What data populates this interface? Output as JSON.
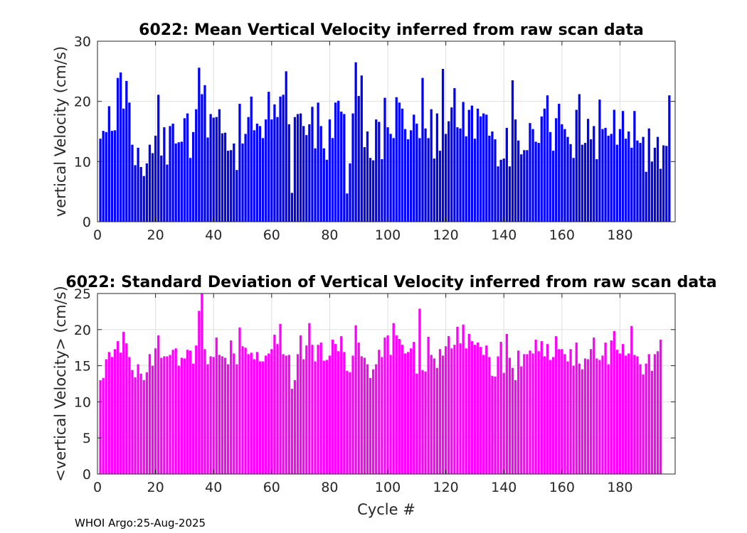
{
  "footer": "WHOI Argo:25-Aug-2025",
  "colors": {
    "mean_bar": "#0000ff",
    "std_bar": "#ff00ff",
    "axes": "#262626",
    "grid": "#dfdfdf"
  },
  "chart_data": [
    {
      "type": "bar",
      "title": "6022: Mean Vertical Velocity inferred from raw scan data",
      "xlabel": "",
      "ylabel": "vertical Velocity (cm/s)",
      "xlim": [
        0,
        199
      ],
      "ylim": [
        0,
        30
      ],
      "xticks": [
        0,
        20,
        40,
        60,
        80,
        100,
        120,
        140,
        160,
        180
      ],
      "yticks": [
        0,
        10,
        20,
        30
      ],
      "grid": true,
      "x_start": 1,
      "values": [
        13.8,
        15.1,
        14.9,
        19.2,
        15.1,
        15.2,
        23.9,
        24.8,
        18.8,
        23.4,
        19.8,
        12.8,
        9.4,
        12.3,
        9.1,
        7.6,
        9.7,
        12.8,
        11.4,
        14.3,
        21.1,
        11.0,
        15.7,
        9.5,
        15.9,
        16.3,
        13.0,
        13.2,
        13.3,
        17.2,
        18.0,
        10.6,
        14.9,
        18.7,
        25.6,
        21.2,
        22.7,
        14.0,
        17.9,
        17.3,
        17.4,
        18.7,
        14.7,
        14.8,
        11.8,
        11.9,
        13.0,
        8.6,
        19.6,
        13.0,
        14.6,
        17.4,
        20.8,
        15.2,
        16.3,
        15.9,
        13.9,
        17.0,
        21.6,
        17.0,
        19.5,
        17.4,
        20.8,
        21.1,
        25.0,
        16.2,
        4.8,
        17.4,
        17.9,
        18.0,
        15.9,
        14.4,
        16.2,
        19.1,
        12.2,
        19.8,
        15.9,
        12.2,
        10.3,
        17.0,
        13.9,
        19.8,
        20.1,
        18.3,
        17.9,
        4.7,
        9.7,
        18.0,
        26.5,
        20.9,
        24.3,
        12.4,
        15.0,
        10.6,
        10.2,
        17.0,
        16.6,
        10.4,
        20.6,
        15.7,
        14.6,
        13.9,
        20.7,
        19.8,
        18.8,
        15.4,
        13.7,
        15.2,
        17.8,
        16.3,
        13.9,
        23.9,
        15.5,
        13.9,
        18.7,
        10.5,
        18.0,
        11.8,
        25.4,
        14.6,
        16.7,
        19.0,
        22.2,
        15.7,
        15.5,
        19.9,
        14.2,
        18.6,
        19.3,
        13.8,
        18.8,
        17.5,
        18.0,
        17.8,
        14.3,
        15.0,
        13.7,
        9.2,
        10.3,
        10.5,
        15.6,
        9.2,
        23.5,
        17.0,
        13.5,
        11.2,
        11.9,
        11.9,
        16.4,
        15.4,
        13.3,
        13.1,
        17.5,
        18.8,
        21.0,
        14.9,
        11.8,
        17.2,
        19.6,
        16.2,
        15.4,
        14.1,
        12.9,
        10.6,
        18.6,
        21.2,
        12.8,
        13.1,
        17.1,
        13.7,
        15.9,
        10.4,
        20.3,
        15.4,
        15.6,
        14.3,
        14.6,
        18.6,
        12.8,
        15.4,
        18.4,
        13.8,
        15.0,
        12.3,
        18.4,
        13.5,
        13.1,
        14.1,
        8.3,
        15.5,
        10.0,
        12.3,
        14.1,
        8.8,
        12.7,
        12.6,
        21.0
      ]
    },
    {
      "type": "bar",
      "title": "6022: Standard Deviation of Vertical Velocity inferred from raw scan data",
      "xlabel": "Cycle #",
      "ylabel": "<vertical Velocity> (cm/s)",
      "xlim": [
        0,
        199
      ],
      "ylim": [
        0,
        25
      ],
      "xticks": [
        0,
        20,
        40,
        60,
        80,
        100,
        120,
        140,
        160,
        180
      ],
      "yticks": [
        0,
        5,
        10,
        15,
        20,
        25
      ],
      "grid": true,
      "x_start": 1,
      "values": [
        13.0,
        13.3,
        15.9,
        16.9,
        16.2,
        17.3,
        18.4,
        16.8,
        19.7,
        18.1,
        16.2,
        14.4,
        13.4,
        15.2,
        13.9,
        13.0,
        14.1,
        16.6,
        15.0,
        17.4,
        19.2,
        16.1,
        16.3,
        16.3,
        16.5,
        17.2,
        17.4,
        15.0,
        16.1,
        16.0,
        17.2,
        17.1,
        15.3,
        17.8,
        22.6,
        25.0,
        17.3,
        15.2,
        16.3,
        16.2,
        18.9,
        16.5,
        16.3,
        16.1,
        15.2,
        18.5,
        16.7,
        15.2,
        20.3,
        17.7,
        17.5,
        16.6,
        16.8,
        15.9,
        16.9,
        15.6,
        15.6,
        16.4,
        16.7,
        17.3,
        19.3,
        18.0,
        20.8,
        16.6,
        16.4,
        16.5,
        11.8,
        13.0,
        16.6,
        19.2,
        15.9,
        17.8,
        20.9,
        17.9,
        15.6,
        17.9,
        18.2,
        15.7,
        15.8,
        16.4,
        18.6,
        18.0,
        17.0,
        19.1,
        16.9,
        14.3,
        14.1,
        16.4,
        20.6,
        18.2,
        16.3,
        16.1,
        15.2,
        13.3,
        14.5,
        15.2,
        17.2,
        16.2,
        18.9,
        19.2,
        16.5,
        20.9,
        19.2,
        18.7,
        17.9,
        16.7,
        16.9,
        17.4,
        18.3,
        13.9,
        22.9,
        14.4,
        14.2,
        19.0,
        16.5,
        16.0,
        14.7,
        17.3,
        16.4,
        17.7,
        19.1,
        17.4,
        17.9,
        20.4,
        18.1,
        20.7,
        17.4,
        19.4,
        18.4,
        17.9,
        18.2,
        17.6,
        16.5,
        17.8,
        16.2,
        13.6,
        13.5,
        16.3,
        18.3,
        14.0,
        19.4,
        16.1,
        14.7,
        13.0,
        17.1,
        14.9,
        16.6,
        16.6,
        17.1,
        16.7,
        18.6,
        17.0,
        18.4,
        16.3,
        18.0,
        15.8,
        16.2,
        19.1,
        17.3,
        17.3,
        16.6,
        15.6,
        17.3,
        15.0,
        18.2,
        15.3,
        14.5,
        16.0,
        15.9,
        17.3,
        18.9,
        16.0,
        15.8,
        16.4,
        18.2,
        15.2,
        18.5,
        19.8,
        17.2,
        16.7,
        18.0,
        16.4,
        16.7,
        20.5,
        16.5,
        16.3,
        15.2,
        13.8,
        15.3,
        16.6,
        14.3,
        16.6,
        17.0,
        18.6
      ]
    }
  ]
}
